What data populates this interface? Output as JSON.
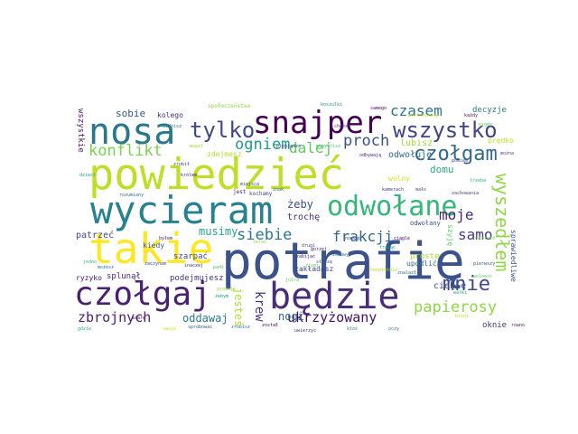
{
  "cloud": {
    "words": [
      {
        "id": "powiedziec",
        "text": "powiedzieć",
        "color": "#bddf26"
      },
      {
        "id": "potrafie",
        "text": "potrafię",
        "color": "#3b528b"
      },
      {
        "id": "wycieram",
        "text": "wycieram",
        "color": "#26828e"
      },
      {
        "id": "takie",
        "text": "takie",
        "color": "#fde725"
      },
      {
        "id": "bedzie",
        "text": "będzie",
        "color": "#472d7b"
      },
      {
        "id": "czolgaj",
        "text": "czołgaj",
        "color": "#482173"
      },
      {
        "id": "nosa",
        "text": "nosa",
        "color": "#2a788e"
      },
      {
        "id": "snajper",
        "text": "snajper",
        "color": "#440154"
      },
      {
        "id": "odwolane",
        "text": "odwołane",
        "color": "#35b779"
      },
      {
        "id": "wszystko",
        "text": "wszystko",
        "color": "#414487"
      },
      {
        "id": "czolgam",
        "text": "czołgam",
        "color": "#31688e"
      },
      {
        "id": "tylko",
        "text": "tylko",
        "color": "#3e4a89"
      },
      {
        "id": "wyszedlem",
        "text": "wyszedłem",
        "color": "#8fd744"
      },
      {
        "id": "konflikt",
        "text": "konflikt",
        "color": "#7ad151"
      },
      {
        "id": "ogniem",
        "text": "ogniem",
        "color": "#1f9e89"
      },
      {
        "id": "dalej",
        "text": "dalej",
        "color": "#5ec962"
      },
      {
        "id": "proch",
        "text": "proch",
        "color": "#3b528b"
      },
      {
        "id": "czasem",
        "text": "czasem",
        "color": "#2c728e"
      },
      {
        "id": "mnie",
        "text": "mnie",
        "color": "#3e4989"
      },
      {
        "id": "moje",
        "text": "moje",
        "color": "#482878"
      },
      {
        "id": "siebie",
        "text": "siebie",
        "color": "#2a788e"
      },
      {
        "id": "frakcji",
        "text": "frakcji",
        "color": "#31688e"
      },
      {
        "id": "samo",
        "text": "samo",
        "color": "#443a83"
      },
      {
        "id": "musimy",
        "text": "musimy",
        "color": "#22a884"
      },
      {
        "id": "papierosy",
        "text": "papierosy",
        "color": "#8fd744"
      },
      {
        "id": "zbrojnych",
        "text": "zbrojnych",
        "color": "#482173"
      },
      {
        "id": "ukrzyzowany",
        "text": "ukrzyżowany",
        "color": "#471063"
      },
      {
        "id": "oddawaj",
        "text": "oddawaj",
        "color": "#2a788e"
      },
      {
        "id": "krew",
        "text": "krew",
        "color": "#46337e"
      },
      {
        "id": "nogi",
        "text": "nogi",
        "color": "#31688e"
      },
      {
        "id": "jestes",
        "text": "jesteś",
        "color": "#addc30"
      },
      {
        "id": "sobie",
        "text": "sobie",
        "color": "#3b528b"
      },
      {
        "id": "zeby",
        "text": "żeby",
        "color": "#3e4a89"
      },
      {
        "id": "troche",
        "text": "trochę",
        "color": "#46327e"
      },
      {
        "id": "domu",
        "text": "domu",
        "color": "#27ad81"
      },
      {
        "id": "lubisz",
        "text": "lubisz",
        "color": "#9fda3a"
      },
      {
        "id": "odwoluje",
        "text": "odwołuje",
        "color": "#31688e"
      },
      {
        "id": "wszystkie",
        "text": "wszystkie",
        "color": "#481467"
      },
      {
        "id": "kolego",
        "text": "kolego",
        "color": "#472c7a"
      },
      {
        "id": "patrzec",
        "text": "patrzeć",
        "color": "#404688"
      },
      {
        "id": "kiedy",
        "text": "kiedy",
        "color": "#365c8d"
      },
      {
        "id": "szarpac",
        "text": "szarpać",
        "color": "#3f4788"
      },
      {
        "id": "ryzyko",
        "text": "ryzyko",
        "color": "#471365"
      },
      {
        "id": "splunal",
        "text": "splunął",
        "color": "#482475"
      },
      {
        "id": "podejmujesz",
        "text": "podejmujesz",
        "color": "#45337d"
      },
      {
        "id": "zakladasz",
        "text": "zakładasz",
        "color": "#3f4889"
      },
      {
        "id": "ciebie",
        "text": "ciebie",
        "color": "#3b528b"
      },
      {
        "id": "oknie",
        "text": "oknie",
        "color": "#453781"
      },
      {
        "id": "decyzje",
        "text": "decyzje",
        "color": "#2a788e"
      },
      {
        "id": "predko",
        "text": "prędko",
        "color": "#c2df23"
      },
      {
        "id": "spolecznstwa",
        "text": "społeczeństwa",
        "color": "#8fd744"
      },
      {
        "id": "sprawiedliwe",
        "text": "sprawiedliwe",
        "color": "#3b528b"
      },
      {
        "id": "szyje",
        "text": "szyję",
        "color": "#5ec962"
      },
      {
        "id": "proste",
        "text": "proste",
        "color": "#aadc32"
      },
      {
        "id": "upodlic",
        "text": "upodlić",
        "color": "#2e6e8e"
      },
      {
        "id": "odwolany",
        "text": "odwołany",
        "color": "#3b528b"
      },
      {
        "id": "wolny",
        "text": "wolny",
        "color": "#dde318"
      },
      {
        "id": "zdejmesz",
        "text": "zdejmesz",
        "color": "#b5de2b"
      },
      {
        "id": "koszulki",
        "text": "koszulki",
        "color": "#1f978b"
      },
      {
        "id": "kochamy",
        "text": "kochamy",
        "color": "#3d4e8a"
      },
      {
        "id": "jest",
        "text": "jest",
        "color": "#48196b"
      },
      {
        "id": "rozumiany",
        "text": "rozumiany",
        "color": "#31688e"
      },
      {
        "id": "dzieci",
        "text": "dzieci",
        "color": "#1fa088"
      },
      {
        "id": "zrobil",
        "text": "zrobił",
        "color": "#3f4788"
      },
      {
        "id": "mowil",
        "text": "mówił",
        "color": "#9fda3a"
      },
      {
        "id": "samego",
        "text": "samego",
        "color": "#46085c"
      },
      {
        "id": "pomyslisz",
        "text": "pomyślisz",
        "color": "#4ac16d"
      },
      {
        "id": "postrzelony",
        "text": "postrzelony",
        "color": "#c8e020"
      },
      {
        "id": "zachowania",
        "text": "zachowania",
        "color": "#433e85"
      },
      {
        "id": "malo",
        "text": "mało",
        "color": "#3c4f8a"
      },
      {
        "id": "trzeba",
        "text": "trzeba",
        "color": "#29af7f"
      },
      {
        "id": "odbywaja",
        "text": "odbywają",
        "color": "#482979"
      },
      {
        "id": "jedno",
        "text": "jedno",
        "color": "#38b977"
      },
      {
        "id": "mozesz",
        "text": "możesz",
        "color": "#2d718e"
      },
      {
        "id": "zaczynam",
        "text": "zaczynam",
        "color": "#3a548c"
      },
      {
        "id": "inaczej",
        "text": "inaczej",
        "color": "#472f7d"
      },
      {
        "id": "padl",
        "text": "padł",
        "color": "#54c568"
      },
      {
        "id": "bezplatnie",
        "text": "bezpłatnie",
        "color": "#b8de29"
      },
      {
        "id": "znalazl",
        "text": "znalazł",
        "color": "#2c728e"
      },
      {
        "id": "wolnosc",
        "text": "wolność",
        "color": "#5ec962"
      },
      {
        "id": "pierwszy",
        "text": "pierwszy",
        "color": "#3b528b"
      },
      {
        "id": "tracac",
        "text": "tracąc",
        "color": "#1fa188"
      },
      {
        "id": "ciagle",
        "text": "ciągle",
        "color": "#46075a"
      },
      {
        "id": "zabawy",
        "text": "zabawy",
        "color": "#2a778e"
      },
      {
        "id": "slysze",
        "text": "słyszę",
        "color": "#3a548c"
      },
      {
        "id": "zabijac",
        "text": "zabijać",
        "color": "#481d6f"
      },
      {
        "id": "gorzej",
        "text": "gorzej",
        "color": "#48186a"
      },
      {
        "id": "nowego",
        "text": "nowego",
        "color": "#3c508b"
      },
      {
        "id": "pracuje",
        "text": "pracuję",
        "color": "#9bd93c"
      },
      {
        "id": "zostal",
        "text": "został",
        "color": "#440154"
      },
      {
        "id": "kamerach",
        "text": "kamerach",
        "color": "#433d84"
      },
      {
        "id": "miejsca",
        "text": "miejsca",
        "color": "#3e4c8a"
      },
      {
        "id": "znak",
        "text": "znak",
        "color": "#2e6f8e"
      },
      {
        "id": "ziemi",
        "text": "ziemi",
        "color": "#77d153"
      },
      {
        "id": "swoje",
        "text": "swoje",
        "color": "#d5e21a"
      },
      {
        "id": "wiare",
        "text": "wiarę",
        "color": "#470d60"
      },
      {
        "id": "gdzie",
        "text": "gdzie",
        "color": "#26ad81"
      },
      {
        "id": "sprobowac",
        "text": "spróbować",
        "color": "#365d8d"
      },
      {
        "id": "zrobisz",
        "text": "zrobisz",
        "color": "#2b748e"
      },
      {
        "id": "ktos",
        "text": "ktoś",
        "color": "#2a768e"
      },
      {
        "id": "uwierzyc",
        "text": "uwierzyć",
        "color": "#453882"
      },
      {
        "id": "rowno",
        "text": "równo",
        "color": "#481769"
      },
      {
        "id": "oczy",
        "text": "oczy",
        "color": "#2c738e"
      },
      {
        "id": "mozna",
        "text": "można",
        "color": "#3c4f8a"
      },
      {
        "id": "ostatnie",
        "text": "ostatnie",
        "color": "#84d44b"
      },
      {
        "id": "powiem",
        "text": "powiem",
        "color": "#3e4a89"
      },
      {
        "id": "krolem",
        "text": "królem",
        "color": "#482576"
      },
      {
        "id": "bylem",
        "text": "byłem",
        "color": "#482071"
      },
      {
        "id": "drugi",
        "text": "drugi",
        "color": "#3b528b"
      },
      {
        "id": "jutra",
        "text": "jutra",
        "color": "#63cb5f"
      },
      {
        "id": "walki",
        "text": "walki",
        "color": "#22a785"
      },
      {
        "id": "zebym",
        "text": "żebym",
        "color": "#1f9a8a"
      },
      {
        "id": "widzisz",
        "text": "widzisz",
        "color": "#2e6d8e"
      },
      {
        "id": "chcesz",
        "text": "chcesz",
        "color": "#453581"
      },
      {
        "id": "nigdy",
        "text": "nigdy",
        "color": "#5cc863"
      },
      {
        "id": "kazdy",
        "text": "każdy",
        "color": "#481467"
      },
      {
        "id": "broni",
        "text": "broni",
        "color": "#c0df25"
      },
      {
        "id": "teraz",
        "text": "teraz",
        "color": "#95d840"
      },
      {
        "id": "pieniadze",
        "text": "pieniądze",
        "color": "#404588"
      }
    ]
  }
}
